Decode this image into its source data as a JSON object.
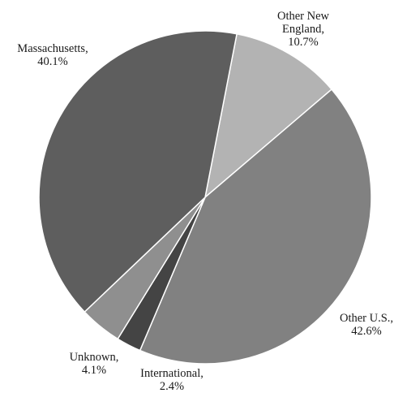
{
  "chart_data": {
    "type": "pie",
    "title": "",
    "slices": [
      {
        "label_lines": [
          "Other New",
          "England,"
        ],
        "value": 10.7,
        "value_text": "10.7%",
        "color": "#b3b3b3"
      },
      {
        "label_lines": [
          "Other U.S.,"
        ],
        "value": 42.6,
        "value_text": "42.6%",
        "color": "#818181"
      },
      {
        "label_lines": [
          "International,"
        ],
        "value": 2.4,
        "value_text": "2.4%",
        "color": "#444444"
      },
      {
        "label_lines": [
          "Unknown,"
        ],
        "value": 4.1,
        "value_text": "4.1%",
        "color": "#8f8f8f"
      },
      {
        "label_lines": [
          "Massachusetts,"
        ],
        "value": 40.1,
        "value_text": "40.1%",
        "color": "#5e5e5e"
      }
    ],
    "start_angle_deg": 11,
    "direction": "clockwise",
    "legend": "none"
  }
}
